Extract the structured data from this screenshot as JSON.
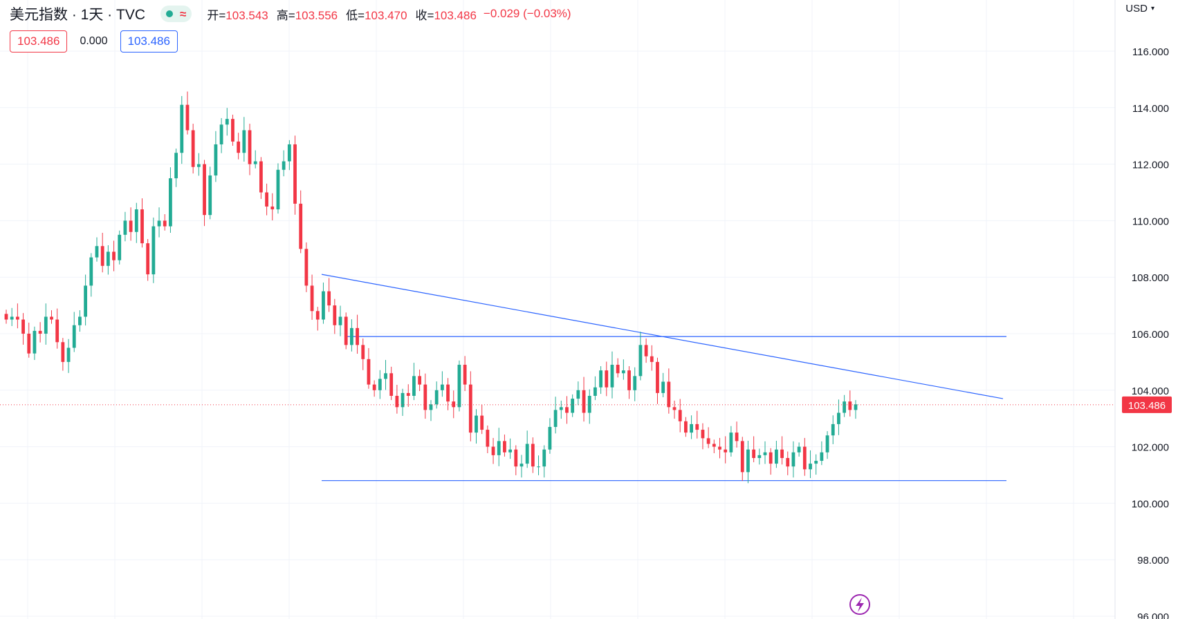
{
  "header": {
    "title": "美元指数 · 1天 · TVC",
    "delay_icon": "≈",
    "ohlc": [
      {
        "label": "开=",
        "value": "103.543"
      },
      {
        "label": "高=",
        "value": "103.556"
      },
      {
        "label": "低=",
        "value": "103.470"
      },
      {
        "label": "收=",
        "value": "103.486"
      }
    ],
    "change": "−0.029 (−0.03%)"
  },
  "values_row": {
    "box1": "103.486",
    "plain": "0.000",
    "box2": "103.486"
  },
  "currency": {
    "label": "USD",
    "icon": "chevron-down-icon"
  },
  "colors": {
    "up": "#22ab94",
    "down": "#f23645",
    "trendline": "#2962ff",
    "grid": "#f0f3fa"
  },
  "chart_data": {
    "type": "candlestick",
    "ylim": [
      96,
      117.2
    ],
    "y_ticks": [
      "96.000",
      "98.000",
      "100.000",
      "102.000",
      "104.000",
      "106.000",
      "108.000",
      "110.000",
      "112.000",
      "114.000",
      "116.000"
    ],
    "last_price": "103.486",
    "last_price_value": 103.486,
    "closes": [
      106.5,
      106.6,
      106.5,
      106.0,
      105.3,
      106.1,
      106.0,
      106.6,
      106.5,
      105.7,
      105.0,
      105.5,
      106.3,
      106.6,
      107.7,
      108.7,
      109.1,
      108.4,
      108.9,
      108.6,
      109.5,
      110.0,
      109.6,
      110.4,
      109.2,
      108.1,
      109.8,
      110.0,
      109.8,
      111.5,
      112.4,
      114.1,
      113.2,
      111.9,
      112.0,
      110.2,
      111.6,
      112.7,
      113.4,
      113.6,
      112.8,
      112.4,
      113.2,
      112.0,
      112.1,
      111.0,
      110.5,
      110.4,
      111.8,
      112.1,
      112.7,
      110.6,
      109.0,
      107.7,
      106.8,
      106.5,
      107.5,
      107.0,
      106.3,
      106.6,
      105.6,
      106.2,
      105.6,
      105.1,
      104.2,
      104.0,
      104.4,
      104.6,
      103.8,
      103.4,
      103.9,
      103.8,
      104.5,
      104.2,
      103.3,
      103.5,
      104.0,
      104.2,
      103.6,
      103.4,
      104.9,
      104.2,
      102.5,
      103.1,
      102.6,
      102.0,
      101.7,
      102.2,
      101.8,
      101.9,
      101.3,
      101.4,
      102.1,
      101.3,
      101.3,
      101.9,
      102.7,
      103.3,
      103.4,
      103.2,
      103.7,
      104.0,
      103.2,
      103.8,
      104.1,
      104.7,
      104.1,
      104.9,
      104.6,
      104.7,
      104.0,
      104.5,
      105.6,
      105.2,
      105.0,
      103.9,
      104.3,
      103.4,
      103.3,
      102.9,
      102.5,
      102.8,
      102.6,
      102.3,
      102.1,
      102.0,
      101.9,
      101.8,
      102.5,
      102.2,
      101.1,
      101.9,
      101.6,
      101.7,
      101.8,
      101.4,
      101.9,
      101.6,
      101.3,
      101.8,
      102.0,
      101.2,
      101.4,
      101.5,
      101.8,
      102.4,
      102.8,
      103.2,
      103.6,
      103.3,
      103.5
    ]
  }
}
